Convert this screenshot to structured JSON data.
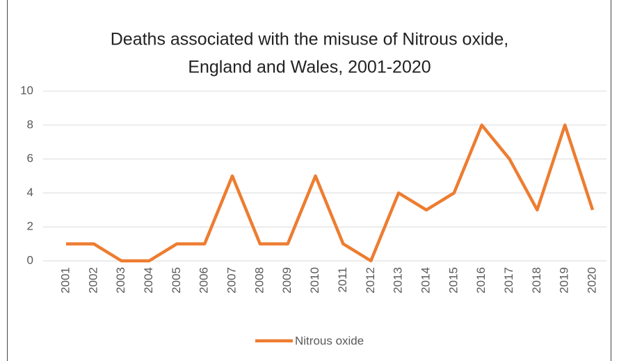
{
  "chart_data": {
    "type": "line",
    "title": [
      "Deaths associated with the misuse of Nitrous oxide,",
      "England and Wales, 2001-2020"
    ],
    "categories": [
      "2001",
      "2002",
      "2003",
      "2004",
      "2005",
      "2006",
      "2007",
      "2008",
      "2009",
      "2010",
      "2011",
      "2012",
      "2013",
      "2014",
      "2015",
      "2016",
      "2017",
      "2018",
      "2019",
      "2020"
    ],
    "series": [
      {
        "name": "Nitrous oxide",
        "color": "#ed7d31",
        "values": [
          1,
          1,
          0,
          0,
          1,
          1,
          5,
          1,
          1,
          5,
          1,
          0,
          4,
          3,
          4,
          8,
          6,
          3,
          8,
          3
        ]
      }
    ],
    "ylim": [
      0,
      10
    ],
    "yticks": [
      0,
      2,
      4,
      6,
      8,
      10
    ],
    "grid": true,
    "legend": "bottom"
  }
}
